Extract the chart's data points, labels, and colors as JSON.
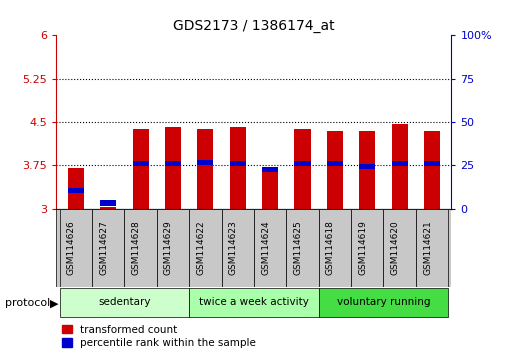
{
  "title": "GDS2173 / 1386174_at",
  "samples": [
    "GSM114626",
    "GSM114627",
    "GSM114628",
    "GSM114629",
    "GSM114622",
    "GSM114623",
    "GSM114624",
    "GSM114625",
    "GSM114618",
    "GSM114619",
    "GSM114620",
    "GSM114621"
  ],
  "red_values": [
    3.7,
    3.04,
    4.38,
    4.42,
    4.38,
    4.42,
    3.72,
    4.38,
    4.35,
    4.35,
    4.47,
    4.35
  ],
  "blue_values": [
    3.32,
    3.1,
    3.78,
    3.78,
    3.8,
    3.78,
    3.68,
    3.78,
    3.78,
    3.73,
    3.78,
    3.78
  ],
  "base": 3.0,
  "ylim_left": [
    3.0,
    6.0
  ],
  "ylim_right": [
    0,
    100
  ],
  "yticks_left": [
    3.0,
    3.75,
    4.5,
    5.25,
    6.0
  ],
  "yticks_right": [
    0,
    25,
    50,
    75,
    100
  ],
  "ytick_labels_left": [
    "3",
    "3.75",
    "4.5",
    "5.25",
    "6"
  ],
  "ytick_labels_right": [
    "0",
    "25",
    "50",
    "75",
    "100%"
  ],
  "red_color": "#cc0000",
  "blue_color": "#0000cc",
  "bar_width": 0.5,
  "groups": [
    {
      "label": "sedentary",
      "indices": [
        0,
        1,
        2,
        3
      ],
      "color": "#ccffcc"
    },
    {
      "label": "twice a week activity",
      "indices": [
        4,
        5,
        6,
        7
      ],
      "color": "#aaffaa"
    },
    {
      "label": "voluntary running",
      "indices": [
        8,
        9,
        10,
        11
      ],
      "color": "#44dd44"
    }
  ],
  "xlabel_area_bg": "#c8c8c8",
  "protocol_label": "protocol",
  "legend_red": "transformed count",
  "legend_blue": "percentile rank within the sample",
  "dotted_line_color": "#000000",
  "axis_left_color": "#cc0000",
  "axis_right_color": "#0000cc",
  "hgrid_vals": [
    3.75,
    4.5,
    5.25
  ],
  "blue_bar_height": 0.09
}
